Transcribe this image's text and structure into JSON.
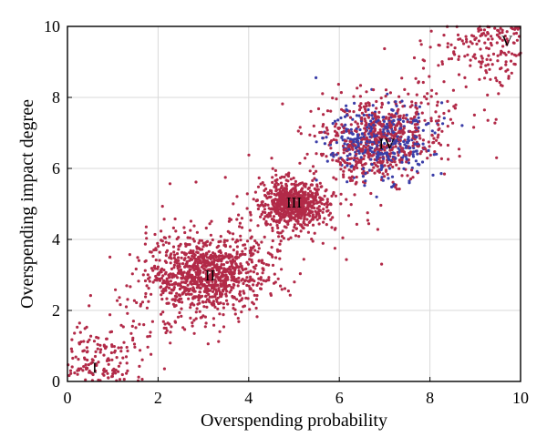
{
  "chart_data": {
    "type": "scatter",
    "title": "",
    "xlabel": "Overspending probability",
    "ylabel": "Overspending impact degree",
    "xlim": [
      0,
      10
    ],
    "ylim": [
      0,
      10
    ],
    "xticks": [
      "0",
      "2",
      "4",
      "6",
      "8",
      "10"
    ],
    "yticks": [
      "0",
      "2",
      "4",
      "6",
      "8",
      "10"
    ],
    "grid": true,
    "legend": "none",
    "colors": {
      "red": "#b22a48",
      "blue": "#3b3ea8"
    },
    "clusters": [
      {
        "label": "I",
        "center": [
          0.6,
          0.4
        ],
        "label_at": [
          0.6,
          0.4
        ],
        "spread": [
          0.55,
          0.55
        ],
        "count": 150,
        "color": "#b22a48"
      },
      {
        "label": "II",
        "center": [
          3.1,
          3.0
        ],
        "label_at": [
          3.15,
          3.0
        ],
        "spread": [
          0.65,
          0.55
        ],
        "count": 950,
        "color": "#b22a48"
      },
      {
        "label": "III",
        "center": [
          5.0,
          5.0
        ],
        "label_at": [
          5.0,
          5.05
        ],
        "spread": [
          0.35,
          0.32
        ],
        "count": 650,
        "color": "#b22a48"
      },
      {
        "label": "IV",
        "center": [
          6.9,
          6.8
        ],
        "label_at": [
          7.05,
          6.7
        ],
        "spread": [
          0.6,
          0.55
        ],
        "count": 850,
        "color": "#b22a48",
        "blue_fraction": 0.42
      },
      {
        "label": "V",
        "center": [
          9.5,
          9.5
        ],
        "label_at": [
          9.7,
          9.6
        ],
        "spread": [
          0.55,
          0.45
        ],
        "count": 160,
        "color": "#b22a48"
      }
    ],
    "background_points": {
      "description": "scattered diagonal band",
      "count": 550,
      "color": "#b22a48"
    }
  }
}
